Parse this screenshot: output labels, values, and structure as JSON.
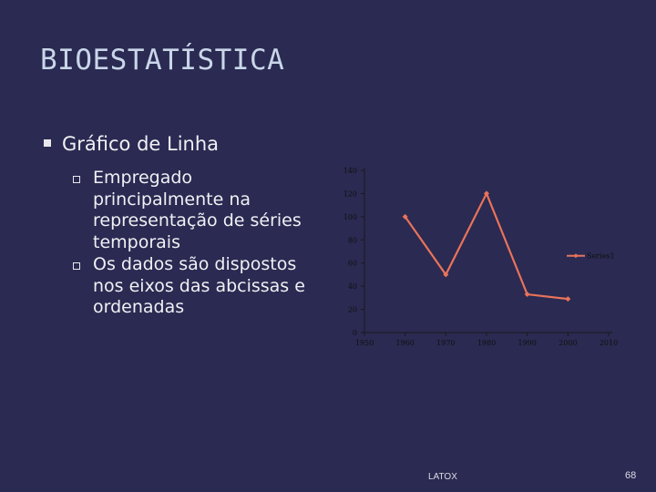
{
  "slide": {
    "title": "BIOESTATÍSTICA",
    "bullet": "Gráfico de Linha",
    "sub_bullets": [
      "Empregado principalmente na representação de séries temporais",
      "Os dados são dispostos nos eixos das abcissas e ordenadas"
    ],
    "footer_left": "LATOX",
    "footer_right": "68"
  },
  "colors": {
    "line": "#e8735a",
    "axis": "#1a1a1a",
    "tick_text": "#111111"
  },
  "chart_data": {
    "type": "line",
    "x_ticks": [
      "1950",
      "1960",
      "1970",
      "1980",
      "1990",
      "2000",
      "2010"
    ],
    "y_ticks": [
      "0",
      "20",
      "40",
      "60",
      "80",
      "100",
      "120",
      "140"
    ],
    "ylim": [
      0,
      140
    ],
    "xlim": [
      1950,
      2010
    ],
    "series": [
      {
        "name": "Series1",
        "x": [
          1960,
          1970,
          1980,
          1990,
          2000
        ],
        "y": [
          100,
          50,
          120,
          33,
          29
        ]
      }
    ],
    "legend_position": "right"
  }
}
